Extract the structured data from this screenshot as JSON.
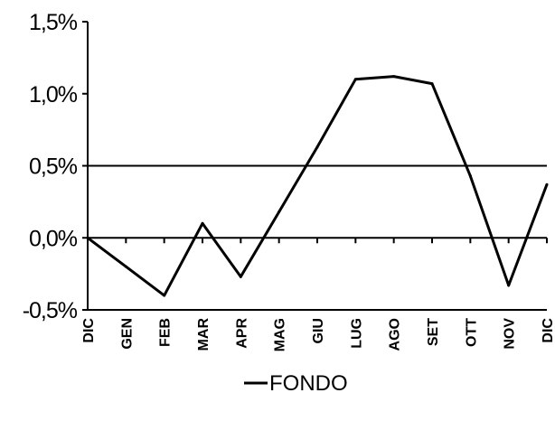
{
  "chart_data": {
    "type": "line",
    "title": "",
    "xlabel": "",
    "ylabel": "",
    "categories": [
      "DIC",
      "GEN",
      "FEB",
      "MAR",
      "APR",
      "MAG",
      "GIU",
      "LUG",
      "AGO",
      "SET",
      "OTT",
      "NOV",
      "DIC"
    ],
    "series": [
      {
        "name": "FONDO",
        "color": "#000000",
        "values": [
          0.0,
          -0.2,
          -0.4,
          0.1,
          -0.27,
          0.18,
          0.63,
          1.1,
          1.12,
          1.07,
          0.43,
          -0.33,
          0.37
        ]
      }
    ],
    "ylim": [
      -0.5,
      1.5
    ],
    "yticks": [
      -0.5,
      0.0,
      0.5,
      1.0,
      1.5
    ],
    "ytick_labels": [
      "-0,5%",
      "0,0%",
      "0,5%",
      "1,0%",
      "1,5%"
    ],
    "gridlines_y": [
      0.5
    ],
    "baseline_y": 0.0,
    "legend": {
      "position": "bottom",
      "entries": [
        "FONDO"
      ]
    }
  }
}
